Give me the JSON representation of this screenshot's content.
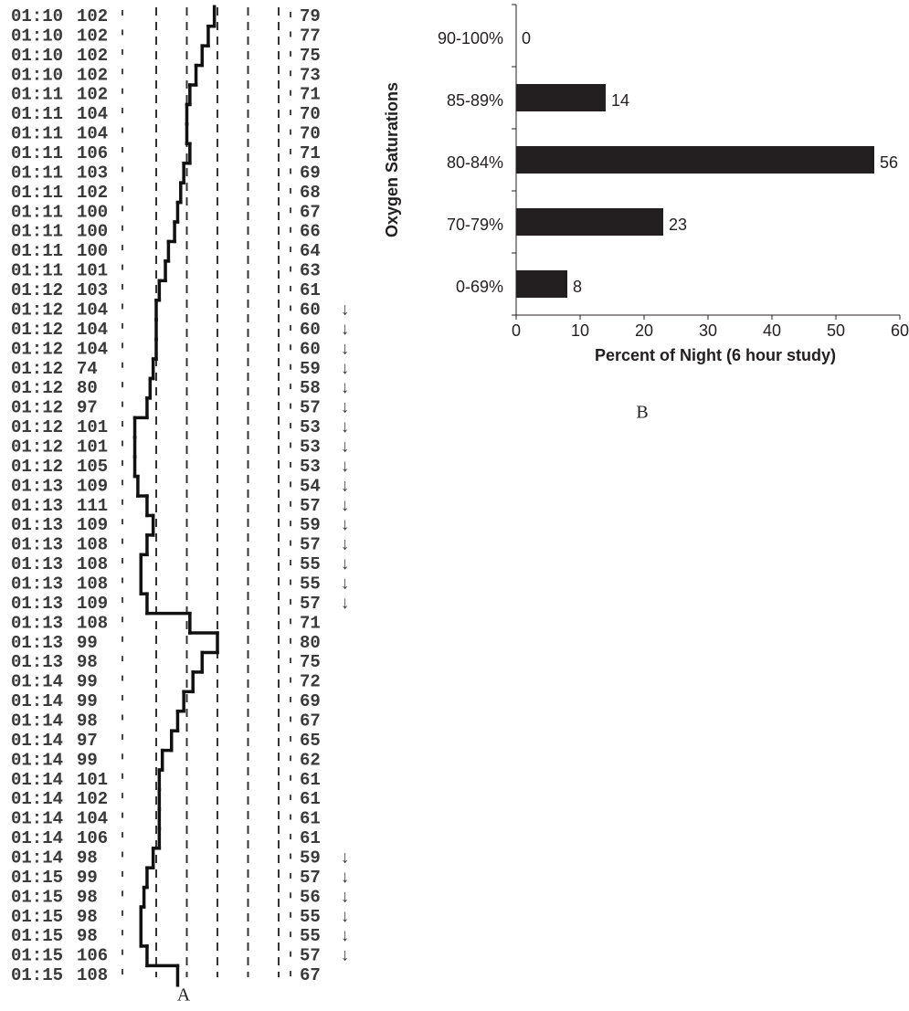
{
  "chart_data": [
    {
      "type": "trace",
      "label": "A",
      "times": [
        "01:10",
        "01:10",
        "01:10",
        "01:10",
        "01:11",
        "01:11",
        "01:11",
        "01:11",
        "01:11",
        "01:11",
        "01:11",
        "01:11",
        "01:11",
        "01:11",
        "01:12",
        "01:12",
        "01:12",
        "01:12",
        "01:12",
        "01:12",
        "01:12",
        "01:12",
        "01:12",
        "01:12",
        "01:13",
        "01:13",
        "01:13",
        "01:13",
        "01:13",
        "01:13",
        "01:13",
        "01:13",
        "01:13",
        "01:13",
        "01:14",
        "01:14",
        "01:14",
        "01:14",
        "01:14",
        "01:14",
        "01:14",
        "01:14",
        "01:14",
        "01:14",
        "01:15",
        "01:15",
        "01:15",
        "01:15",
        "01:15",
        "01:15"
      ],
      "pulse": [
        102,
        102,
        102,
        102,
        102,
        104,
        104,
        106,
        103,
        102,
        100,
        100,
        100,
        101,
        103,
        104,
        104,
        104,
        74,
        80,
        97,
        101,
        101,
        105,
        109,
        111,
        109,
        108,
        108,
        108,
        109,
        108,
        99,
        98,
        99,
        99,
        98,
        97,
        99,
        101,
        102,
        104,
        106,
        98,
        99,
        98,
        98,
        98,
        106,
        108
      ],
      "values": [
        79,
        77,
        75,
        73,
        71,
        70,
        70,
        71,
        69,
        68,
        67,
        66,
        64,
        63,
        61,
        60,
        60,
        60,
        59,
        58,
        57,
        53,
        53,
        53,
        54,
        57,
        59,
        57,
        55,
        55,
        57,
        71,
        80,
        75,
        72,
        69,
        67,
        65,
        62,
        61,
        61,
        61,
        61,
        59,
        57,
        56,
        55,
        55,
        57,
        67
      ],
      "marker": "↓",
      "marked": [
        false,
        false,
        false,
        false,
        false,
        false,
        false,
        false,
        false,
        false,
        false,
        false,
        false,
        false,
        false,
        true,
        true,
        true,
        true,
        true,
        true,
        true,
        true,
        true,
        true,
        true,
        true,
        true,
        true,
        true,
        true,
        false,
        false,
        false,
        false,
        false,
        false,
        false,
        false,
        false,
        false,
        false,
        false,
        true,
        true,
        true,
        true,
        true,
        true,
        false
      ],
      "gridlines": [
        60,
        70,
        80,
        90,
        100
      ],
      "color": "#111111"
    },
    {
      "type": "barh",
      "label": "B",
      "ylabel": "Oxygen Saturations",
      "xlabel": "Percent of Night (6 hour study)",
      "categories": [
        "90-100%",
        "85-89%",
        "80-84%",
        "70-79%",
        "0-69%"
      ],
      "values": [
        0,
        14,
        56,
        23,
        8
      ],
      "xlim": [
        0,
        60
      ],
      "xticks": [
        0,
        10,
        20,
        30,
        40,
        50,
        60
      ],
      "color": "#231f20"
    }
  ]
}
